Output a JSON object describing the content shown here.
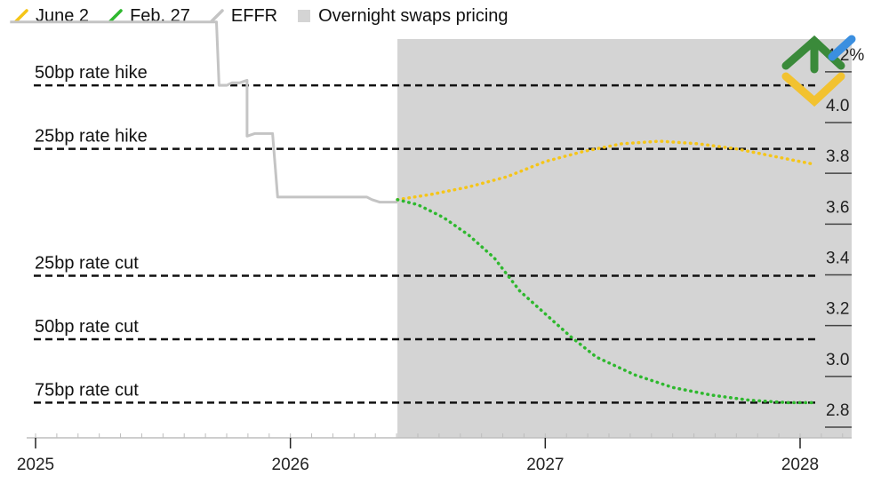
{
  "legend": [
    {
      "label": "June 2",
      "color": "#f5c518",
      "kind": "stroke"
    },
    {
      "label": "Feb. 27",
      "color": "#2eb82e",
      "kind": "stroke"
    },
    {
      "label": "EFFR",
      "color": "#c4c4c4",
      "kind": "stroke"
    },
    {
      "label": "Overnight swaps pricing",
      "color": "#d4d4d4",
      "kind": "box"
    }
  ],
  "chart_data": {
    "type": "line",
    "title": "",
    "xlabel": "",
    "ylabel": "",
    "x_ticks": [
      {
        "value": 2025,
        "label": "2025"
      },
      {
        "value": 2026,
        "label": "2026"
      },
      {
        "value": 2027,
        "label": "2027"
      },
      {
        "value": 2028,
        "label": "2028"
      }
    ],
    "y_ticks": [
      {
        "value": 4.2,
        "label": "4.2%"
      },
      {
        "value": 4.0,
        "label": "4.0"
      },
      {
        "value": 3.8,
        "label": "3.8"
      },
      {
        "value": 3.6,
        "label": "3.6"
      },
      {
        "value": 3.4,
        "label": "3.4"
      },
      {
        "value": 3.2,
        "label": "3.2"
      },
      {
        "value": 3.0,
        "label": "3.0"
      },
      {
        "value": 2.8,
        "label": "2.8"
      }
    ],
    "xlim": [
      2025,
      2028.2
    ],
    "ylim": [
      2.7,
      4.35
    ],
    "shaded_region": {
      "label": "Overnight swaps pricing",
      "x_start": 2026.42,
      "x_end": 2028.2,
      "color": "#d4d4d4"
    },
    "reference_lines": [
      {
        "label": "50bp rate hike",
        "y": 4.08
      },
      {
        "label": "25bp rate hike",
        "y": 3.83
      },
      {
        "label": "25bp rate cut",
        "y": 3.33
      },
      {
        "label": "50bp rate cut",
        "y": 3.08
      },
      {
        "label": "75bp rate cut",
        "y": 2.83
      }
    ],
    "series": [
      {
        "name": "EFFR",
        "color": "#c4c4c4",
        "style": "solid",
        "points": [
          [
            2024.9,
            4.33
          ],
          [
            2025.71,
            4.33
          ],
          [
            2025.71,
            4.33
          ],
          [
            2025.72,
            4.08
          ],
          [
            2025.75,
            4.08
          ],
          [
            2025.77,
            4.09
          ],
          [
            2025.8,
            4.09
          ],
          [
            2025.83,
            4.1
          ],
          [
            2025.83,
            3.88
          ],
          [
            2025.86,
            3.89
          ],
          [
            2025.9,
            3.89
          ],
          [
            2025.93,
            3.89
          ],
          [
            2025.95,
            3.64
          ],
          [
            2026.0,
            3.64
          ],
          [
            2026.2,
            3.64
          ],
          [
            2026.3,
            3.64
          ],
          [
            2026.32,
            3.63
          ],
          [
            2026.35,
            3.62
          ],
          [
            2026.38,
            3.62
          ],
          [
            2026.42,
            3.62
          ]
        ]
      },
      {
        "name": "June 2",
        "color": "#f5c518",
        "style": "dotted",
        "points": [
          [
            2026.42,
            3.63
          ],
          [
            2026.55,
            3.65
          ],
          [
            2026.7,
            3.68
          ],
          [
            2026.85,
            3.72
          ],
          [
            2027.0,
            3.78
          ],
          [
            2027.15,
            3.82
          ],
          [
            2027.3,
            3.85
          ],
          [
            2027.45,
            3.86
          ],
          [
            2027.6,
            3.85
          ],
          [
            2027.75,
            3.83
          ],
          [
            2027.9,
            3.8
          ],
          [
            2028.05,
            3.77
          ]
        ]
      },
      {
        "name": "Feb. 27",
        "color": "#2eb82e",
        "style": "dotted",
        "points": [
          [
            2026.42,
            3.63
          ],
          [
            2026.5,
            3.61
          ],
          [
            2026.6,
            3.56
          ],
          [
            2026.7,
            3.49
          ],
          [
            2026.8,
            3.4
          ],
          [
            2026.9,
            3.27
          ],
          [
            2027.0,
            3.18
          ],
          [
            2027.1,
            3.09
          ],
          [
            2027.2,
            3.01
          ],
          [
            2027.35,
            2.94
          ],
          [
            2027.5,
            2.89
          ],
          [
            2027.65,
            2.86
          ],
          [
            2027.8,
            2.84
          ],
          [
            2027.95,
            2.83
          ],
          [
            2028.05,
            2.83
          ]
        ]
      }
    ],
    "grid": false,
    "legend_position": "top-left"
  }
}
